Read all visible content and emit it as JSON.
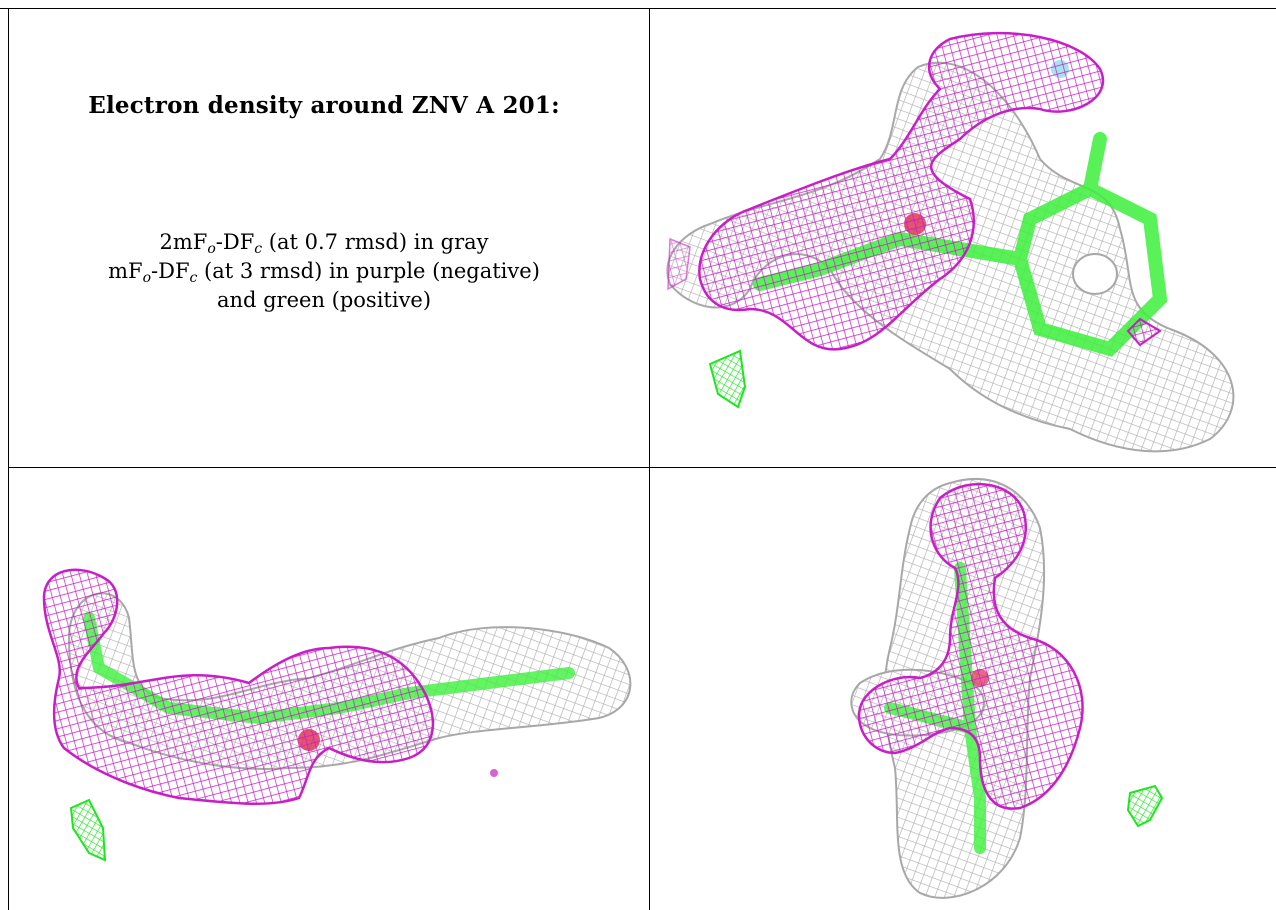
{
  "title": "Electron density around ZNV A 201:",
  "legend": {
    "line1": {
      "pre": "2mF",
      "sub1": "o",
      "mid": "-DF",
      "sub2": "c",
      "post": " (at 0.7 rmsd) in gray"
    },
    "line2": {
      "pre": "mF",
      "sub1": "o",
      "mid": "-DF",
      "sub2": "c",
      "post": " (at 3 rmsd) in purple (negative)"
    },
    "line3": "and green (positive)"
  },
  "colors": {
    "gray_mesh": "#b4b4b4",
    "purple_mesh": "#c81ec8",
    "green_mesh": "#1ee61e",
    "green_atoms": "#3cf03c",
    "red_atom": "#dc2850"
  },
  "panels": [
    "top-right view",
    "bottom-left view",
    "bottom-right view"
  ]
}
